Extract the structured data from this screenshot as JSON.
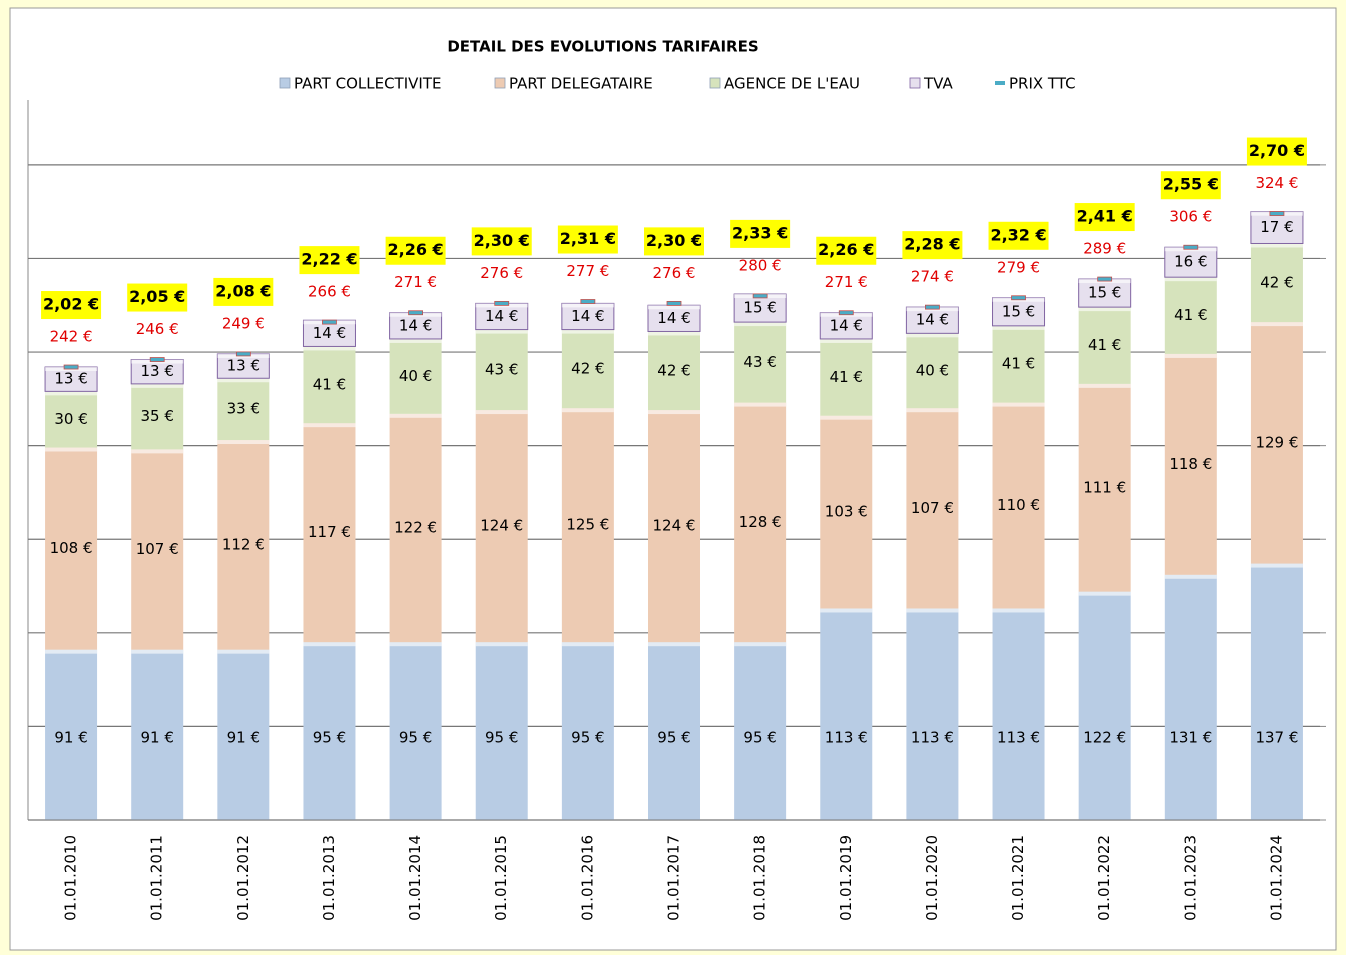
{
  "chart_data": {
    "type": "bar",
    "stacked": true,
    "title": "DETAIL DES EVOLUTIONS TARIFAIRES",
    "categories": [
      "01.01.2010",
      "01.01.2011",
      "01.01.2012",
      "01.01.2013",
      "01.01.2014",
      "01.01.2015",
      "01.01.2016",
      "01.01.2017",
      "01.01.2018",
      "01.01.2019",
      "01.01.2020",
      "01.01.2021",
      "01.01.2022",
      "01.01.2023",
      "01.01.2024"
    ],
    "series": [
      {
        "name": "PART COLLECTIVITE",
        "color": "#b8cce4",
        "values": [
          91,
          91,
          91,
          95,
          95,
          95,
          95,
          95,
          95,
          113,
          113,
          113,
          122,
          131,
          137
        ],
        "value_labels": [
          "91 €",
          "91 €",
          "91 €",
          "95 €",
          "95 €",
          "95 €",
          "95 €",
          "95 €",
          "95 €",
          "113 €",
          "113 €",
          "113 €",
          "122 €",
          "131 €",
          "137 €"
        ]
      },
      {
        "name": "PART DELEGATAIRE",
        "color": "#edcbb3",
        "values": [
          108,
          107,
          112,
          117,
          122,
          124,
          125,
          124,
          128,
          103,
          107,
          110,
          111,
          118,
          129
        ],
        "value_labels": [
          "108 €",
          "107 €",
          "112 €",
          "117 €",
          "122 €",
          "124 €",
          "125 €",
          "124 €",
          "128 €",
          "103 €",
          "107 €",
          "110 €",
          "111 €",
          "118 €",
          "129 €"
        ]
      },
      {
        "name": "AGENCE DE L'EAU",
        "color": "#d6e3bc",
        "values": [
          30,
          35,
          33,
          41,
          40,
          43,
          42,
          42,
          43,
          41,
          40,
          41,
          41,
          41,
          42
        ],
        "value_labels": [
          "30 €",
          "35 €",
          "33 €",
          "41 €",
          "40 €",
          "43 €",
          "42 €",
          "42 €",
          "43 €",
          "41 €",
          "40 €",
          "41 €",
          "41 €",
          "41 €",
          "42 €"
        ]
      },
      {
        "name": "TVA",
        "color": "#e6e0ee",
        "values": [
          13,
          13,
          13,
          14,
          14,
          14,
          14,
          14,
          15,
          14,
          14,
          15,
          15,
          16,
          17
        ],
        "value_labels": [
          "13 €",
          "13 €",
          "13 €",
          "14 €",
          "14 €",
          "14 €",
          "14 €",
          "14 €",
          "15 €",
          "14 €",
          "14 €",
          "15 €",
          "15 €",
          "16 €",
          "17 €"
        ]
      },
      {
        "name": "PRIX TTC",
        "color": "#4bacc6",
        "type": "marker",
        "values": [
          242,
          246,
          249,
          266,
          271,
          276,
          277,
          276,
          280,
          271,
          274,
          279,
          289,
          306,
          324
        ],
        "value_labels": [
          "242 €",
          "246 €",
          "249 €",
          "266 €",
          "271 €",
          "276 €",
          "277 €",
          "276 €",
          "280 €",
          "271 €",
          "274 €",
          "279 €",
          "289 €",
          "306 €",
          "324 €"
        ]
      }
    ],
    "price_labels": [
      "2,02 €",
      "2,05 €",
      "2,08 €",
      "2,22 €",
      "2,26 €",
      "2,30 €",
      "2,31 €",
      "2,30 €",
      "2,33 €",
      "2,26 €",
      "2,28 €",
      "2,32 €",
      "2,41 €",
      "2,55 €",
      "2,70 €"
    ],
    "ylim": [
      0,
      390
    ],
    "yticks": [
      0,
      50,
      100,
      150,
      200,
      250,
      300,
      350
    ],
    "grid": true
  }
}
